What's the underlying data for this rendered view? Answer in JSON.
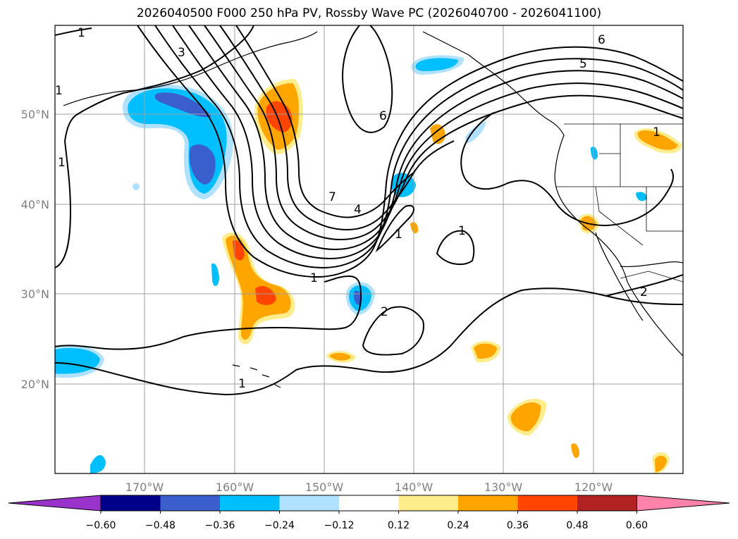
{
  "map": {
    "title": "2026040500 F000 250 hPa PV, Rossby Wave PC (2026040700 - 2026041100)",
    "lon_labels": [
      "170°W",
      "160°W",
      "150°W",
      "140°W",
      "130°W",
      "120°W"
    ],
    "lat_labels": [
      "50°N",
      "40°N",
      "30°N",
      "20°N"
    ],
    "contour_labels": [
      "1",
      "3",
      "6",
      "5",
      "6",
      "7",
      "4",
      "1",
      "1",
      "2",
      "1",
      "1",
      "1",
      "2",
      "1",
      "1"
    ],
    "colors": {
      "ocean": "#ffffff",
      "coast": "#000000",
      "grid": "#a0a0a0"
    }
  },
  "colorbar": {
    "ticks": [
      "−0.60",
      "−0.48",
      "−0.36",
      "−0.24",
      "−0.12",
      "0.12",
      "0.24",
      "0.36",
      "0.48",
      "0.60"
    ],
    "levels": [
      -0.6,
      -0.48,
      -0.36,
      -0.24,
      -0.12,
      0.12,
      0.24,
      0.36,
      0.48,
      0.6
    ],
    "colors": [
      "#9933cc",
      "#00008b",
      "#3a5fcd",
      "#00bfff",
      "#b0e2ff",
      "#ffffff",
      "#ffec8b",
      "#ffa500",
      "#ff4500",
      "#b22222",
      "#ff82ab"
    ]
  }
}
